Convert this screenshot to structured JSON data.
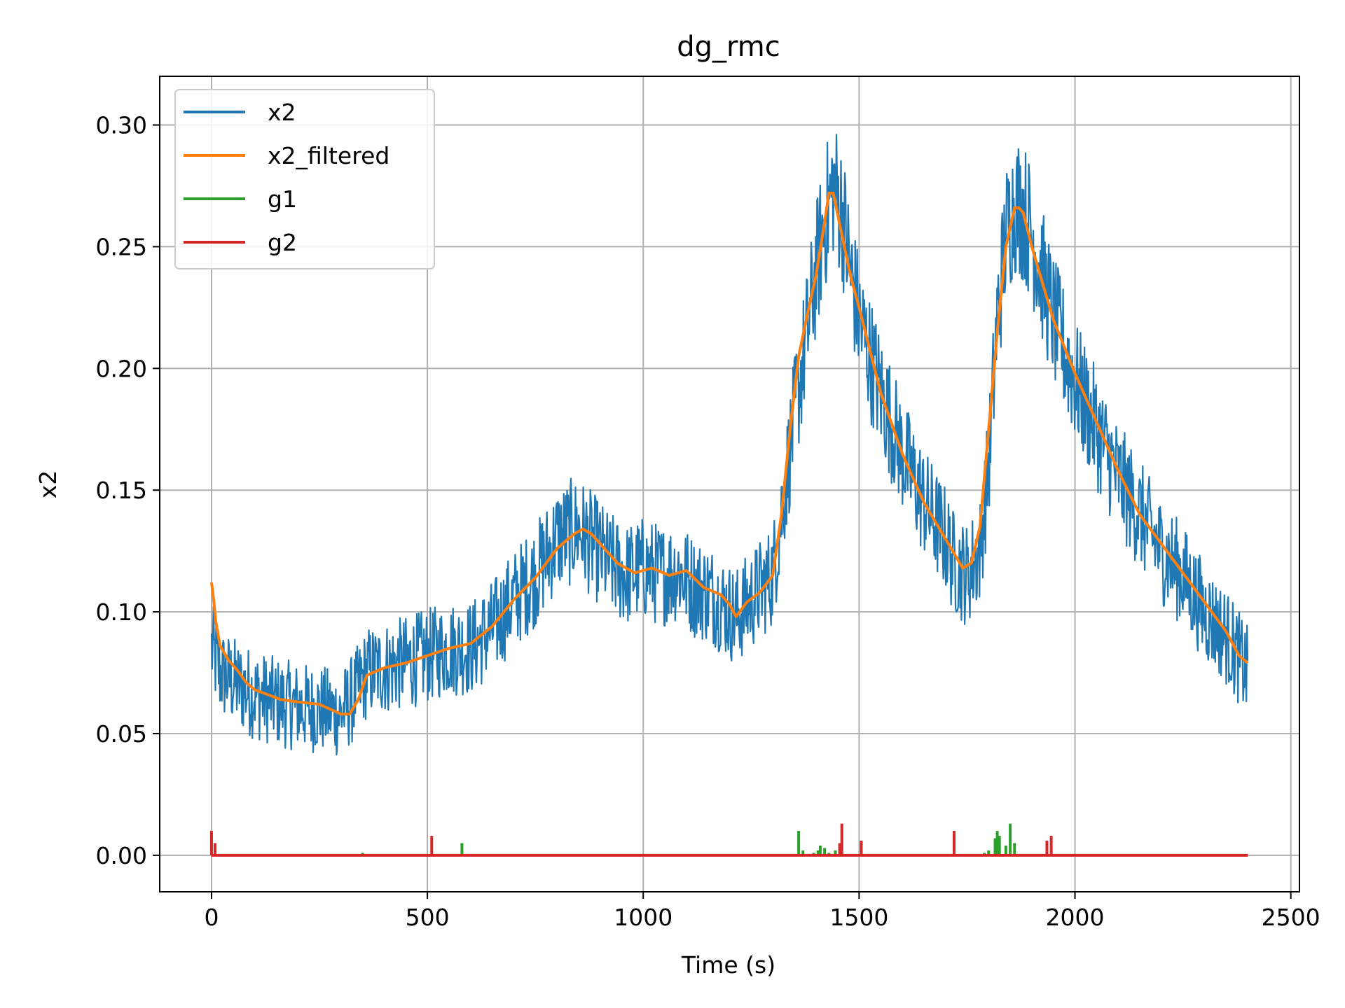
{
  "chart_data": {
    "type": "line",
    "title": "dg_rmc",
    "xlabel": "Time (s)",
    "ylabel": "x2",
    "xlim": [
      -120,
      2520
    ],
    "ylim": [
      -0.015,
      0.32
    ],
    "xticks": [
      0,
      500,
      1000,
      1500,
      2000,
      2500
    ],
    "xtick_labels": [
      "0",
      "500",
      "1000",
      "1500",
      "2000",
      "2500"
    ],
    "yticks": [
      0.0,
      0.05,
      0.1,
      0.15,
      0.2,
      0.25,
      0.3
    ],
    "ytick_labels": [
      "0.00",
      "0.05",
      "0.10",
      "0.15",
      "0.20",
      "0.25",
      "0.30"
    ],
    "grid": true,
    "legend_position": "top-left",
    "series": [
      {
        "name": "x2",
        "color": "#1f77b4",
        "x": [
          0,
          20,
          60,
          100,
          150,
          200,
          250,
          300,
          330,
          360,
          400,
          450,
          500,
          550,
          600,
          650,
          700,
          750,
          800,
          850,
          880,
          920,
          960,
          1000,
          1040,
          1080,
          1120,
          1160,
          1200,
          1215,
          1250,
          1300,
          1320,
          1350,
          1380,
          1400,
          1420,
          1440,
          1460,
          1480,
          1500,
          1550,
          1600,
          1650,
          1700,
          1720,
          1750,
          1780,
          1800,
          1820,
          1840,
          1860,
          1880,
          1900,
          1950,
          2000,
          2050,
          2100,
          2150,
          2200,
          2250,
          2300,
          2350,
          2400
        ],
        "y": [
          0.085,
          0.075,
          0.07,
          0.066,
          0.063,
          0.061,
          0.06,
          0.058,
          0.065,
          0.075,
          0.077,
          0.079,
          0.082,
          0.085,
          0.085,
          0.093,
          0.105,
          0.115,
          0.13,
          0.134,
          0.128,
          0.12,
          0.115,
          0.118,
          0.115,
          0.117,
          0.11,
          0.107,
          0.1,
          0.098,
          0.105,
          0.115,
          0.14,
          0.18,
          0.215,
          0.24,
          0.26,
          0.275,
          0.265,
          0.24,
          0.22,
          0.19,
          0.165,
          0.145,
          0.13,
          0.12,
          0.115,
          0.125,
          0.16,
          0.22,
          0.255,
          0.268,
          0.265,
          0.255,
          0.22,
          0.195,
          0.175,
          0.155,
          0.14,
          0.125,
          0.115,
          0.1,
          0.09,
          0.075
        ],
        "noise_amplitude": 0.025
      },
      {
        "name": "x2_filtered",
        "color": "#ff7f0e",
        "x": [
          0,
          5,
          10,
          20,
          40,
          60,
          80,
          100,
          130,
          160,
          200,
          250,
          300,
          320,
          340,
          360,
          400,
          450,
          500,
          550,
          600,
          650,
          700,
          750,
          800,
          840,
          860,
          880,
          900,
          940,
          980,
          1000,
          1020,
          1060,
          1100,
          1140,
          1180,
          1200,
          1215,
          1240,
          1270,
          1300,
          1320,
          1340,
          1360,
          1380,
          1400,
          1420,
          1430,
          1440,
          1460,
          1480,
          1500,
          1550,
          1600,
          1650,
          1700,
          1720,
          1740,
          1760,
          1780,
          1800,
          1820,
          1840,
          1860,
          1870,
          1880,
          1900,
          1950,
          2000,
          2050,
          2100,
          2150,
          2200,
          2250,
          2300,
          2350,
          2380,
          2400
        ],
        "y": [
          0.112,
          0.105,
          0.096,
          0.086,
          0.08,
          0.076,
          0.071,
          0.068,
          0.066,
          0.064,
          0.063,
          0.062,
          0.058,
          0.058,
          0.064,
          0.074,
          0.077,
          0.079,
          0.082,
          0.085,
          0.087,
          0.094,
          0.105,
          0.114,
          0.126,
          0.132,
          0.134,
          0.132,
          0.128,
          0.12,
          0.116,
          0.117,
          0.118,
          0.115,
          0.117,
          0.11,
          0.107,
          0.103,
          0.098,
          0.104,
          0.108,
          0.115,
          0.14,
          0.175,
          0.205,
          0.222,
          0.238,
          0.26,
          0.272,
          0.272,
          0.255,
          0.238,
          0.225,
          0.19,
          0.165,
          0.145,
          0.13,
          0.124,
          0.118,
          0.12,
          0.135,
          0.175,
          0.215,
          0.25,
          0.266,
          0.266,
          0.264,
          0.25,
          0.22,
          0.198,
          0.178,
          0.158,
          0.14,
          0.128,
          0.116,
          0.104,
          0.092,
          0.082,
          0.079
        ]
      },
      {
        "name": "g1",
        "color": "#2ca02c",
        "baseline": 0.0,
        "spikes": [
          [
            350,
            0.001
          ],
          [
            580,
            0.005
          ],
          [
            1360,
            0.01
          ],
          [
            1370,
            0.002
          ],
          [
            1395,
            0.001
          ],
          [
            1405,
            0.002
          ],
          [
            1410,
            0.004
          ],
          [
            1420,
            0.003
          ],
          [
            1430,
            0.001
          ],
          [
            1445,
            0.002
          ],
          [
            1790,
            0.001
          ],
          [
            1800,
            0.002
          ],
          [
            1815,
            0.007
          ],
          [
            1820,
            0.01
          ],
          [
            1825,
            0.008
          ],
          [
            1840,
            0.004
          ],
          [
            1850,
            0.013
          ],
          [
            1860,
            0.005
          ]
        ]
      },
      {
        "name": "g2",
        "color": "#d62728",
        "baseline": 0.0,
        "spikes": [
          [
            0,
            0.01
          ],
          [
            8,
            0.005
          ],
          [
            510,
            0.008
          ],
          [
            1455,
            0.005
          ],
          [
            1460,
            0.013
          ],
          [
            1505,
            0.006
          ],
          [
            1720,
            0.01
          ],
          [
            1935,
            0.006
          ],
          [
            1945,
            0.008
          ]
        ]
      }
    ]
  }
}
